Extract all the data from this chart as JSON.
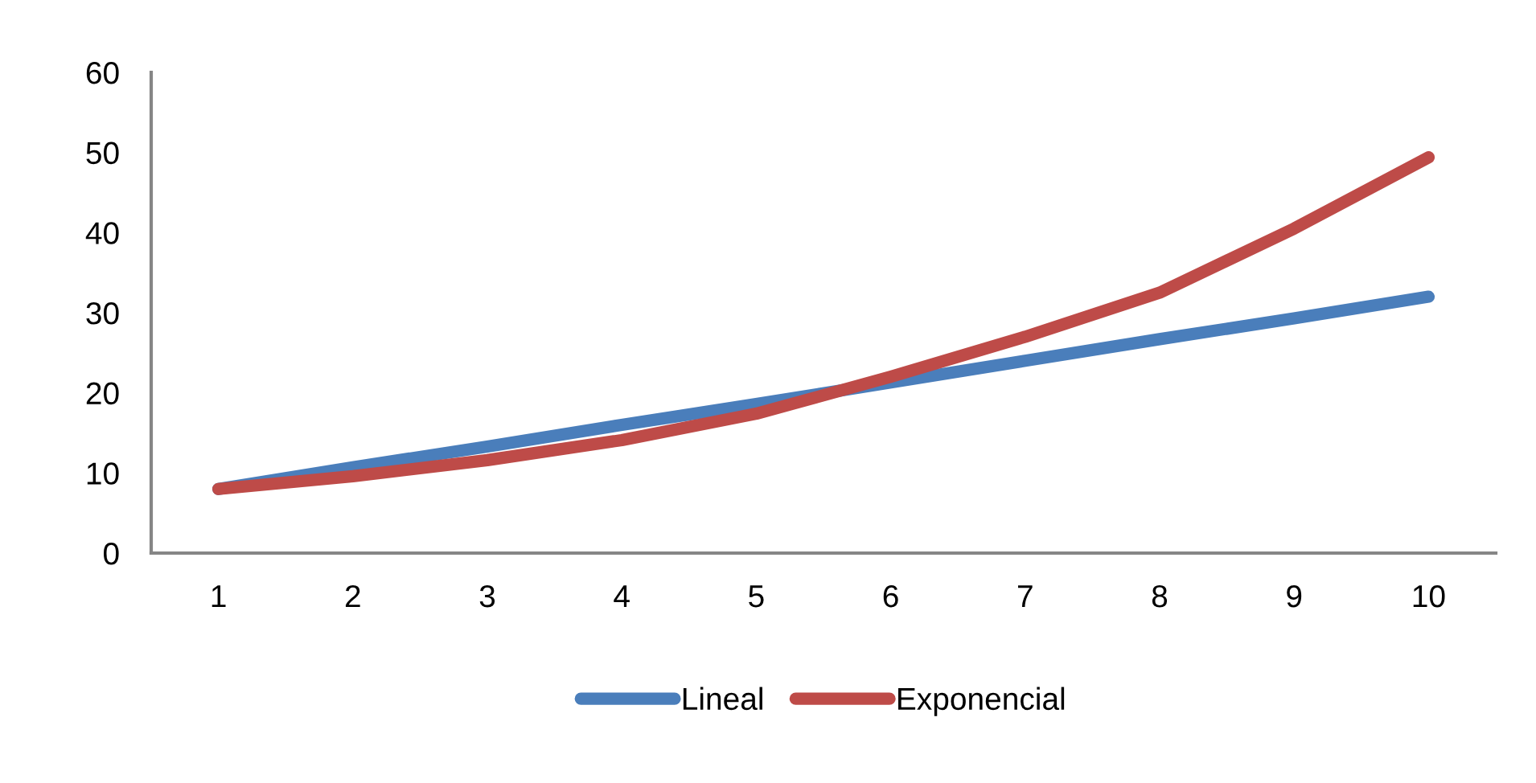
{
  "chart_data": {
    "type": "line",
    "categories": [
      "1",
      "2",
      "3",
      "4",
      "5",
      "6",
      "7",
      "8",
      "9",
      "10"
    ],
    "series": [
      {
        "name": "Lineal",
        "color": "#4a7ebb",
        "values": [
          8,
          10.7,
          13.3,
          16,
          18.6,
          21.3,
          24,
          26.7,
          29.3,
          32
        ]
      },
      {
        "name": "Exponencial",
        "color": "#be4b48",
        "values": [
          8,
          9.6,
          11.6,
          14.1,
          17.4,
          22,
          27,
          32.5,
          40.5,
          49.4
        ]
      }
    ],
    "ylim": [
      0,
      60
    ],
    "yticks": [
      0,
      10,
      20,
      30,
      40,
      50,
      60
    ],
    "grid": false,
    "legend": "bottom",
    "marker": "none",
    "line_style": "solid"
  }
}
